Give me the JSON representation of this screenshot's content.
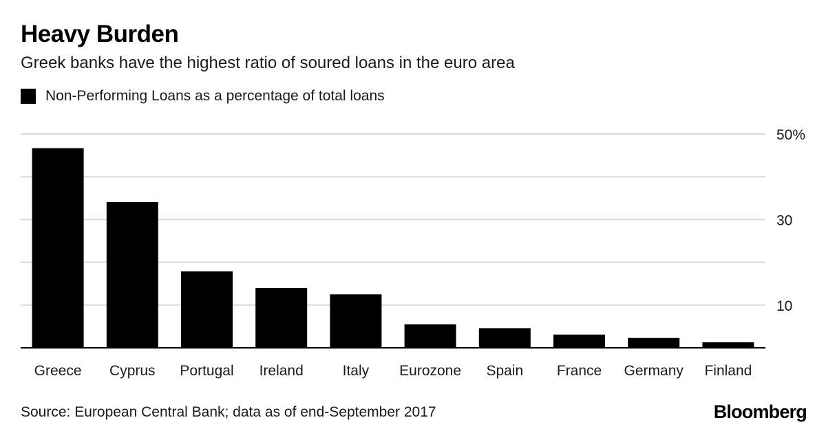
{
  "header": {
    "title": "Heavy Burden",
    "subtitle": "Greek banks have the highest ratio of soured loans in the euro area"
  },
  "footer": {
    "source": "Source: European Central Bank; data as of end-September 2017",
    "brand": "Bloomberg"
  },
  "colors": {
    "bar": "#000000",
    "grid": "#d9d9d9",
    "axis": "#000000"
  },
  "chart_data": {
    "type": "bar",
    "title": "Heavy Burden",
    "subtitle": "Greek banks have the highest ratio of soured loans in the euro area",
    "categories": [
      "Greece",
      "Cyprus",
      "Portugal",
      "Ireland",
      "Italy",
      "Eurozone",
      "Spain",
      "France",
      "Germany",
      "Finland"
    ],
    "series": [
      {
        "name": "Non-Performing Loans as a percentage of total loans",
        "values": [
          46.7,
          34.1,
          17.9,
          14.0,
          12.5,
          5.5,
          4.6,
          3.1,
          2.3,
          1.3
        ]
      }
    ],
    "ylim": [
      0,
      50
    ],
    "ytick_values": [
      0,
      10,
      20,
      30,
      40,
      50
    ],
    "ytick_labels": [
      "10",
      "30",
      "50%"
    ],
    "y_axis_side": "right",
    "grid": true,
    "legend": "top-left"
  }
}
